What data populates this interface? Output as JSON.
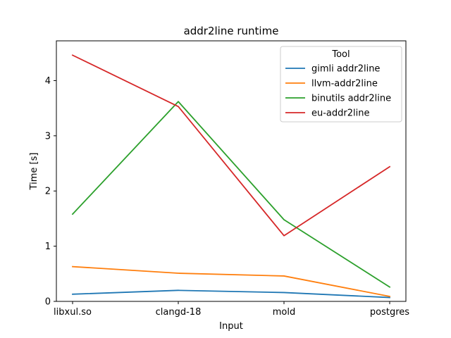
{
  "chart_data": {
    "type": "line",
    "title": "addr2line runtime",
    "xlabel": "Input",
    "ylabel": "Time [s]",
    "categories": [
      "libxul.so",
      "clangd-18",
      "mold",
      "postgres"
    ],
    "ylim": [
      0,
      4.72
    ],
    "yticks": [
      0,
      1,
      2,
      3,
      4
    ],
    "grid": false,
    "legend": {
      "title": "Tool",
      "placement": "top-right"
    },
    "series": [
      {
        "name": "gimli addr2line",
        "color": "#1f77b4",
        "values": [
          0.13,
          0.2,
          0.16,
          0.07
        ]
      },
      {
        "name": "llvm-addr2line",
        "color": "#ff7f0e",
        "values": [
          0.63,
          0.51,
          0.46,
          0.09
        ]
      },
      {
        "name": "binutils addr2line",
        "color": "#2ca02c",
        "values": [
          1.58,
          3.62,
          1.48,
          0.26
        ]
      },
      {
        "name": "eu-addr2line",
        "color": "#d62728",
        "values": [
          4.46,
          3.53,
          1.19,
          2.44
        ]
      }
    ]
  }
}
